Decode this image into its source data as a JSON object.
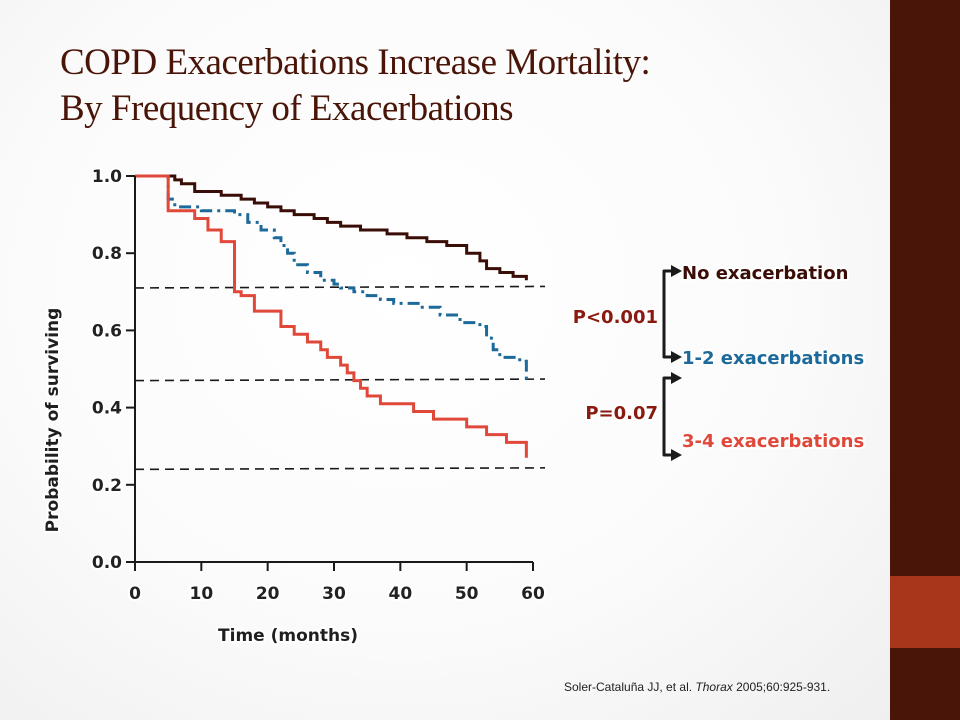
{
  "slide": {
    "title_line1": "COPD Exacerbations Increase Mortality:",
    "title_line2": "By Frequency of Exacerbations",
    "citation_authors": "Soler-Cataluña JJ, et al.",
    "citation_journal": "Thorax",
    "citation_ref": "2005;60:925-931."
  },
  "colors": {
    "title": "#4a1509",
    "sidebar": "#4a1509",
    "sidebar_accent": "#a8361a",
    "series_none": "#3a0d07",
    "series_12": "#1d6a9a",
    "series_34": "#e0483a",
    "pvalue": "#8a1a10"
  },
  "chart_data": {
    "type": "line",
    "xlabel": "Time (months)",
    "ylabel": "Probability of surviving",
    "xlim": [
      0,
      60
    ],
    "ylim": [
      0.0,
      1.0
    ],
    "x_ticks": [
      "0",
      "10",
      "20",
      "30",
      "40",
      "50",
      "60"
    ],
    "y_ticks": [
      "0.0",
      "0.2",
      "0.4",
      "0.6",
      "0.8",
      "1.0"
    ],
    "x_tick_values": [
      0,
      10,
      20,
      30,
      40,
      50,
      60
    ],
    "y_tick_values": [
      0.0,
      0.2,
      0.4,
      0.6,
      0.8,
      1.0
    ],
    "series": [
      {
        "name": "No exacerbation",
        "style": "solid",
        "color_key": "series_none",
        "x": [
          0,
          5,
          6,
          7,
          9,
          13,
          16,
          18,
          20,
          22,
          24,
          27,
          29,
          31,
          34,
          38,
          41,
          44,
          47,
          50,
          52,
          53,
          55,
          57,
          59
        ],
        "y": [
          1.0,
          1.0,
          0.99,
          0.98,
          0.96,
          0.95,
          0.94,
          0.93,
          0.92,
          0.91,
          0.9,
          0.89,
          0.88,
          0.87,
          0.86,
          0.85,
          0.84,
          0.83,
          0.82,
          0.8,
          0.78,
          0.76,
          0.75,
          0.74,
          0.73
        ]
      },
      {
        "name": "1-2 exacerbations",
        "style": "dashdot",
        "color_key": "series_12",
        "x": [
          0,
          5,
          5,
          6,
          10,
          15,
          17,
          19,
          21,
          22,
          23,
          24,
          26,
          28,
          30,
          31,
          33,
          35,
          37,
          39,
          43,
          46,
          49,
          52,
          53,
          54,
          55,
          58,
          59,
          59
        ],
        "y": [
          1.0,
          1.0,
          0.94,
          0.92,
          0.91,
          0.9,
          0.88,
          0.86,
          0.84,
          0.82,
          0.8,
          0.77,
          0.75,
          0.73,
          0.72,
          0.71,
          0.7,
          0.69,
          0.68,
          0.67,
          0.66,
          0.64,
          0.62,
          0.61,
          0.58,
          0.55,
          0.53,
          0.52,
          0.52,
          0.46
        ]
      },
      {
        "name": "3-4 exacerbations",
        "style": "solid",
        "color_key": "series_34",
        "x": [
          0,
          5,
          5,
          9,
          11,
          13,
          15,
          15,
          16,
          18,
          22,
          24,
          26,
          28,
          29,
          31,
          32,
          33,
          34,
          35,
          37,
          40,
          42,
          45,
          50,
          53,
          56,
          59,
          59
        ],
        "y": [
          1.0,
          1.0,
          0.91,
          0.89,
          0.86,
          0.83,
          0.81,
          0.7,
          0.69,
          0.65,
          0.61,
          0.59,
          0.57,
          0.55,
          0.53,
          0.51,
          0.49,
          0.47,
          0.45,
          0.43,
          0.41,
          0.41,
          0.39,
          0.37,
          0.35,
          0.33,
          0.31,
          0.29,
          0.27
        ]
      }
    ],
    "reference_lines": [
      {
        "y": 0.71,
        "style": "dashed"
      },
      {
        "y": 0.47,
        "style": "dashed"
      },
      {
        "y": 0.24,
        "style": "dashed"
      }
    ],
    "legend": [
      {
        "label": "No exacerbation",
        "color_key": "series_none"
      },
      {
        "label": "1-2 exacerbations",
        "color_key": "series_12"
      },
      {
        "label": "3-4 exacerbations",
        "color_key": "series_34"
      }
    ],
    "p_values": [
      {
        "text": "P<0.001",
        "between": [
          "No exacerbation",
          "1-2 exacerbations"
        ]
      },
      {
        "text": "P=0.07",
        "between": [
          "1-2 exacerbations",
          "3-4 exacerbations"
        ]
      }
    ],
    "legend_placement": "right",
    "grid": false
  }
}
